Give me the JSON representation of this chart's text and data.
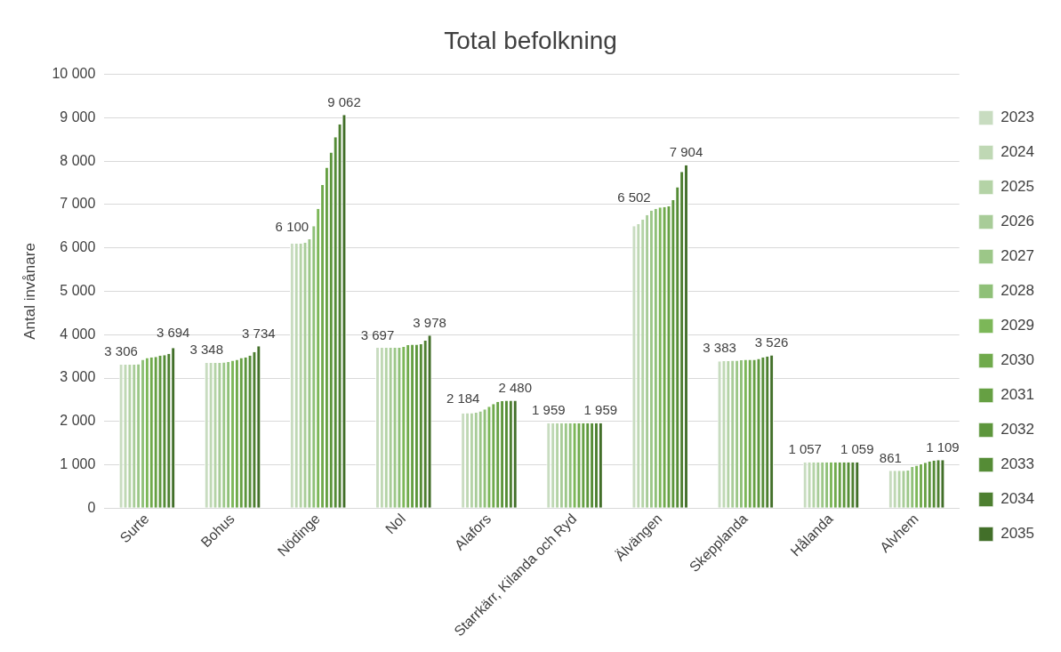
{
  "chart_data": {
    "type": "bar",
    "title": "Total befolkning",
    "ylabel": "Antal invånare",
    "categories": [
      "Surte",
      "Bohus",
      "Nödinge",
      "Nol",
      "Alafors",
      "Starrkärr, Kilanda och Ryd",
      "Älvängen",
      "Skepplanda",
      "Hålanda",
      "Alvhem"
    ],
    "series": [
      {
        "name": "2023",
        "color": "#c8dcc0",
        "values": [
          3306,
          3348,
          6100,
          3697,
          2184,
          1959,
          6502,
          3383,
          1057,
          861
        ],
        "value_labels": [
          "3 306",
          "3 348",
          "6 100",
          "3 697",
          "2 184",
          "1 959",
          "6 502",
          "3 383",
          "1 057",
          "861"
        ]
      },
      {
        "name": "2024",
        "color": "#bfd8b4",
        "values": [
          3306,
          3350,
          6100,
          3700,
          2190,
          1959,
          6550,
          3390,
          1058,
          861
        ]
      },
      {
        "name": "2025",
        "color": "#b4d3a6",
        "values": [
          3310,
          3350,
          6100,
          3700,
          2190,
          1959,
          6650,
          3390,
          1058,
          861
        ]
      },
      {
        "name": "2026",
        "color": "#a8cc98",
        "values": [
          3310,
          3350,
          6120,
          3700,
          2200,
          1959,
          6760,
          3400,
          1058,
          861
        ]
      },
      {
        "name": "2027",
        "color": "#9cc788",
        "values": [
          3320,
          3360,
          6200,
          3700,
          2230,
          1959,
          6860,
          3400,
          1058,
          870
        ]
      },
      {
        "name": "2028",
        "color": "#8fc078",
        "values": [
          3420,
          3370,
          6500,
          3700,
          2280,
          1959,
          6900,
          3410,
          1059,
          950
        ]
      },
      {
        "name": "2029",
        "color": "#7cb758",
        "values": [
          3460,
          3400,
          6900,
          3720,
          2340,
          1959,
          6930,
          3420,
          1059,
          980
        ]
      },
      {
        "name": "2030",
        "color": "#70aa4c",
        "values": [
          3480,
          3420,
          7450,
          3760,
          2400,
          1959,
          6940,
          3420,
          1059,
          1010
        ]
      },
      {
        "name": "2031",
        "color": "#66a043",
        "values": [
          3490,
          3460,
          7850,
          3770,
          2450,
          1959,
          6960,
          3420,
          1059,
          1050
        ]
      },
      {
        "name": "2032",
        "color": "#5d963c",
        "values": [
          3520,
          3480,
          8200,
          3770,
          2470,
          1959,
          7100,
          3440,
          1059,
          1080
        ]
      },
      {
        "name": "2033",
        "color": "#558c36",
        "values": [
          3530,
          3520,
          8550,
          3780,
          2480,
          1959,
          7400,
          3480,
          1059,
          1100
        ]
      },
      {
        "name": "2034",
        "color": "#4d7f30",
        "values": [
          3560,
          3600,
          8850,
          3860,
          2480,
          1959,
          7750,
          3500,
          1059,
          1109
        ]
      },
      {
        "name": "2035",
        "color": "#426f29",
        "values": [
          3694,
          3734,
          9062,
          3978,
          2480,
          1959,
          7904,
          3526,
          1059,
          1109
        ],
        "value_labels": [
          "3 694",
          "3 734",
          "9 062",
          "3 978",
          "2 480",
          "1 959",
          "7 904",
          "3 526",
          "1 059",
          "1 109"
        ]
      }
    ],
    "ylim": [
      0,
      10000
    ],
    "yticks": [
      {
        "value": 0,
        "label": "0"
      },
      {
        "value": 1000,
        "label": "1 000"
      },
      {
        "value": 2000,
        "label": "2 000"
      },
      {
        "value": 3000,
        "label": "3 000"
      },
      {
        "value": 4000,
        "label": "4 000"
      },
      {
        "value": 5000,
        "label": "5 000"
      },
      {
        "value": 6000,
        "label": "6 000"
      },
      {
        "value": 7000,
        "label": "7 000"
      },
      {
        "value": 8000,
        "label": "8 000"
      },
      {
        "value": 9000,
        "label": "9 000"
      },
      {
        "value": 10000,
        "label": "10 000"
      }
    ],
    "grid": "y",
    "legend": "right"
  }
}
